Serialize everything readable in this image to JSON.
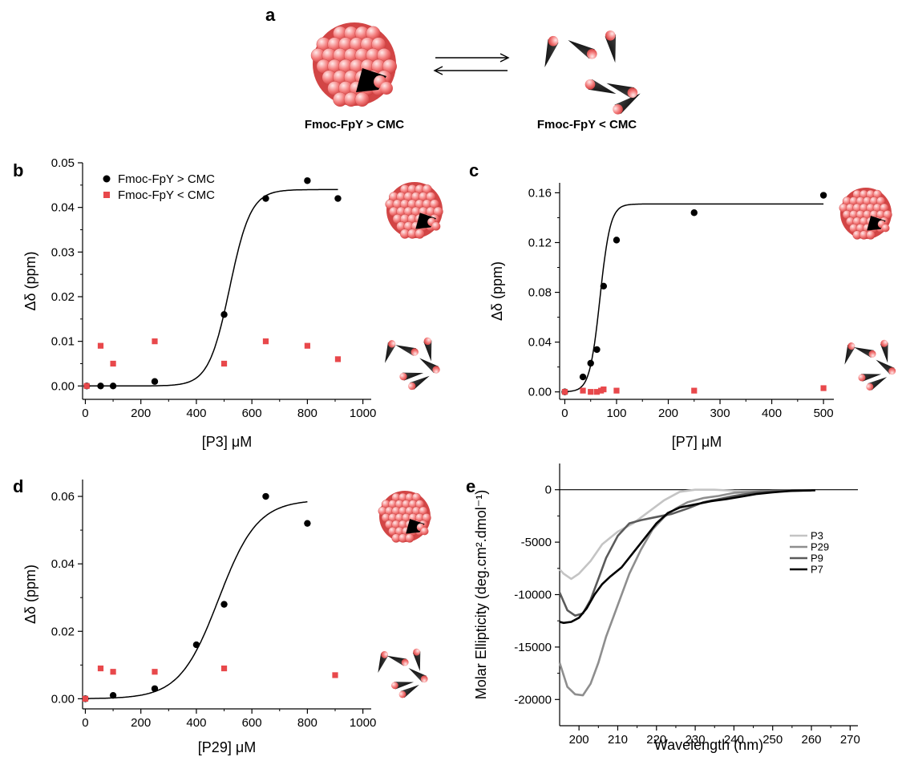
{
  "panel_a": {
    "label": "a",
    "caption_above": "Fmoc-FpY > CMC",
    "caption_below": "Fmoc-FpY < CMC"
  },
  "colors": {
    "above_cmc": "#000000",
    "below_cmc": "#e8484b",
    "sphere": "#f26d6d",
    "sphere_hi": "#ffe3e3",
    "p3": "#c4c4c4",
    "p29": "#8e8e8e",
    "p9": "#5a5a5a",
    "p7": "#000000"
  },
  "icons": {
    "micelle": "micelle-sphere-icon",
    "monomer": "monomer-cone-icon",
    "equilibrium": "equilibrium-arrows-icon"
  },
  "chart_data": [
    {
      "id": "b",
      "label": "b",
      "type": "scatter",
      "xlabel": "[P3] μM",
      "ylabel": "Δδ (ppm)",
      "xlim": [
        -10,
        1030
      ],
      "ylim": [
        -0.003,
        0.05
      ],
      "xticks": [
        0,
        200,
        400,
        600,
        800,
        1000
      ],
      "yticks": [
        0.0,
        0.01,
        0.02,
        0.03,
        0.04,
        0.05
      ],
      "ytick_labels": [
        "0.00",
        "0.01",
        "0.02",
        "0.03",
        "0.04",
        "0.05"
      ],
      "legend": [
        "Fmoc-FpY > CMC",
        "Fmoc-FpY < CMC"
      ],
      "legend_position": "top-left",
      "series": [
        {
          "name": "Fmoc-FpY > CMC",
          "marker": "circle",
          "x": [
            5,
            55,
            100,
            250,
            500,
            650,
            800,
            910
          ],
          "y": [
            0.0,
            0.0,
            0.0,
            0.001,
            0.016,
            0.042,
            0.046,
            0.042
          ]
        },
        {
          "name": "Fmoc-FpY < CMC",
          "marker": "square",
          "x": [
            5,
            55,
            100,
            250,
            500,
            650,
            800,
            910
          ],
          "y": [
            0.0,
            0.009,
            0.005,
            0.01,
            0.005,
            0.01,
            0.009,
            0.006
          ]
        }
      ],
      "fit": {
        "type": "sigmoid",
        "top": 0.044,
        "x50": 520,
        "k": 38,
        "xrange": [
          5,
          910
        ]
      }
    },
    {
      "id": "c",
      "label": "c",
      "type": "scatter",
      "xlabel": "[P7] μM",
      "ylabel": "Δδ (ppm)",
      "xlim": [
        -10,
        520
      ],
      "ylim": [
        -0.006,
        0.168
      ],
      "xticks": [
        0,
        100,
        200,
        300,
        400,
        500
      ],
      "yticks": [
        0.0,
        0.04,
        0.08,
        0.12,
        0.16
      ],
      "ytick_labels": [
        "0.00",
        "0.04",
        "0.08",
        "0.12",
        "0.16"
      ],
      "series": [
        {
          "name": "Fmoc-FpY > CMC",
          "marker": "circle",
          "x": [
            0,
            35,
            50,
            62,
            75,
            100,
            250,
            500
          ],
          "y": [
            0.0,
            0.012,
            0.023,
            0.034,
            0.085,
            0.122,
            0.144,
            0.158
          ]
        },
        {
          "name": "Fmoc-FpY < CMC",
          "marker": "square",
          "x": [
            0,
            35,
            50,
            62,
            70,
            75,
            100,
            250,
            500
          ],
          "y": [
            0.0,
            0.001,
            0.0,
            0.0,
            0.001,
            0.002,
            0.001,
            0.001,
            0.003
          ]
        }
      ],
      "fit": {
        "type": "sigmoid",
        "top": 0.151,
        "x50": 68,
        "k": 10,
        "xrange": [
          0,
          500
        ]
      }
    },
    {
      "id": "d",
      "label": "d",
      "type": "scatter",
      "xlabel": "[P29] μM",
      "ylabel": "Δδ (ppm)",
      "xlim": [
        -10,
        1030
      ],
      "ylim": [
        -0.003,
        0.065
      ],
      "xticks": [
        0,
        200,
        400,
        600,
        800,
        1000
      ],
      "yticks": [
        0.0,
        0.02,
        0.04,
        0.06
      ],
      "ytick_labels": [
        "0.00",
        "0.02",
        "0.04",
        "0.06"
      ],
      "series": [
        {
          "name": "Fmoc-FpY > CMC",
          "marker": "circle",
          "x": [
            0,
            100,
            250,
            400,
            500,
            650,
            800
          ],
          "y": [
            0.0,
            0.001,
            0.003,
            0.016,
            0.028,
            0.06,
            0.052
          ]
        },
        {
          "name": "Fmoc-FpY < CMC",
          "marker": "square",
          "x": [
            0,
            55,
            100,
            250,
            500,
            900
          ],
          "y": [
            0.0,
            0.009,
            0.008,
            0.008,
            0.009,
            0.007
          ]
        }
      ],
      "fit": {
        "type": "sigmoid",
        "top": 0.059,
        "x50": 480,
        "k": 70,
        "xrange": [
          0,
          800
        ]
      }
    },
    {
      "id": "e",
      "label": "e",
      "type": "line",
      "xlabel": "Wavelength (nm)",
      "ylabel": "Molar Ellipticity (deg.cm².dmol⁻¹)",
      "xlim": [
        195,
        272
      ],
      "ylim": [
        -22500,
        2500
      ],
      "xticks": [
        200,
        210,
        220,
        230,
        240,
        250,
        260,
        270
      ],
      "yticks": [
        0,
        -5000,
        -10000,
        -15000,
        -20000
      ],
      "legend_position": "right",
      "series": [
        {
          "name": "P3",
          "x": [
            195,
            196,
            198,
            200,
            203,
            206,
            210,
            214,
            218,
            222,
            226,
            230,
            235,
            240,
            250,
            260
          ],
          "y": [
            -7600,
            -8000,
            -8500,
            -8000,
            -6800,
            -5200,
            -4000,
            -3200,
            -2100,
            -1000,
            -200,
            0,
            0,
            -100,
            -200,
            -100
          ]
        },
        {
          "name": "P29",
          "x": [
            195,
            197,
            199,
            201,
            203,
            205,
            207,
            210,
            213,
            216,
            219,
            222,
            225,
            228,
            232,
            236,
            240,
            245,
            250,
            260
          ],
          "y": [
            -16500,
            -18800,
            -19500,
            -19600,
            -18500,
            -16500,
            -14000,
            -11000,
            -8000,
            -5700,
            -3800,
            -2600,
            -1800,
            -1200,
            -800,
            -600,
            -300,
            -200,
            -100,
            -50
          ]
        },
        {
          "name": "P9",
          "x": [
            195,
            197,
            199,
            201,
            203,
            205,
            207,
            210,
            213,
            216,
            220,
            224,
            228,
            232,
            236,
            240,
            245,
            250,
            260
          ],
          "y": [
            -9800,
            -11500,
            -12000,
            -11800,
            -10500,
            -8500,
            -6500,
            -4400,
            -3200,
            -2900,
            -2600,
            -2300,
            -1800,
            -1200,
            -900,
            -600,
            -300,
            -150,
            -50
          ]
        },
        {
          "name": "P7",
          "x": [
            195,
            196,
            198,
            200,
            202,
            204,
            206,
            208,
            211,
            214,
            217,
            220,
            223,
            226,
            230,
            234,
            238,
            242,
            246,
            250,
            255,
            261
          ],
          "y": [
            -12600,
            -12700,
            -12600,
            -12200,
            -11300,
            -10000,
            -9000,
            -8300,
            -7400,
            -6000,
            -4600,
            -3200,
            -2200,
            -1700,
            -1400,
            -1100,
            -900,
            -650,
            -400,
            -250,
            -100,
            -50
          ]
        }
      ]
    }
  ]
}
